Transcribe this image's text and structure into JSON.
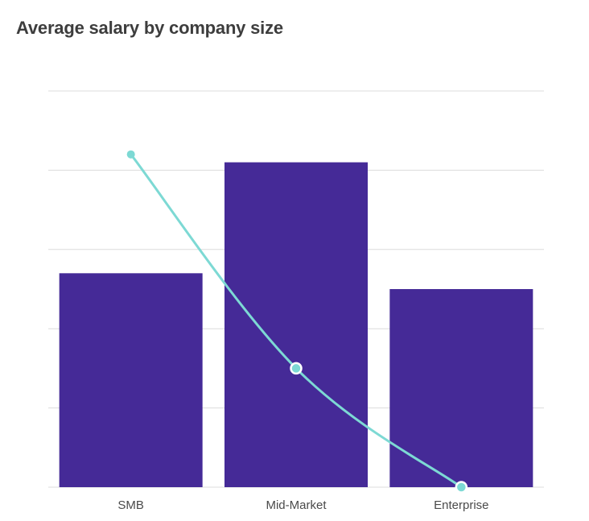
{
  "chart_data": {
    "type": "bar",
    "title": "Average salary by company size",
    "categories": [
      "SMB",
      "Mid-Market",
      "Enterprise"
    ],
    "series": [
      {
        "kind": "bar",
        "values": [
          2.7,
          4.1,
          2.5
        ]
      },
      {
        "kind": "line",
        "values": [
          4.2,
          1.5,
          0.0
        ]
      }
    ],
    "ylim": [
      0,
      5
    ],
    "yticks": [
      0,
      1,
      2,
      3,
      4,
      5
    ],
    "grid": true,
    "xlabel": "",
    "ylabel": "",
    "colors": {
      "bar": "#452a97",
      "line": "#7dd9d4",
      "grid": "#dcdcdc",
      "text": "#4a4a4a"
    }
  }
}
